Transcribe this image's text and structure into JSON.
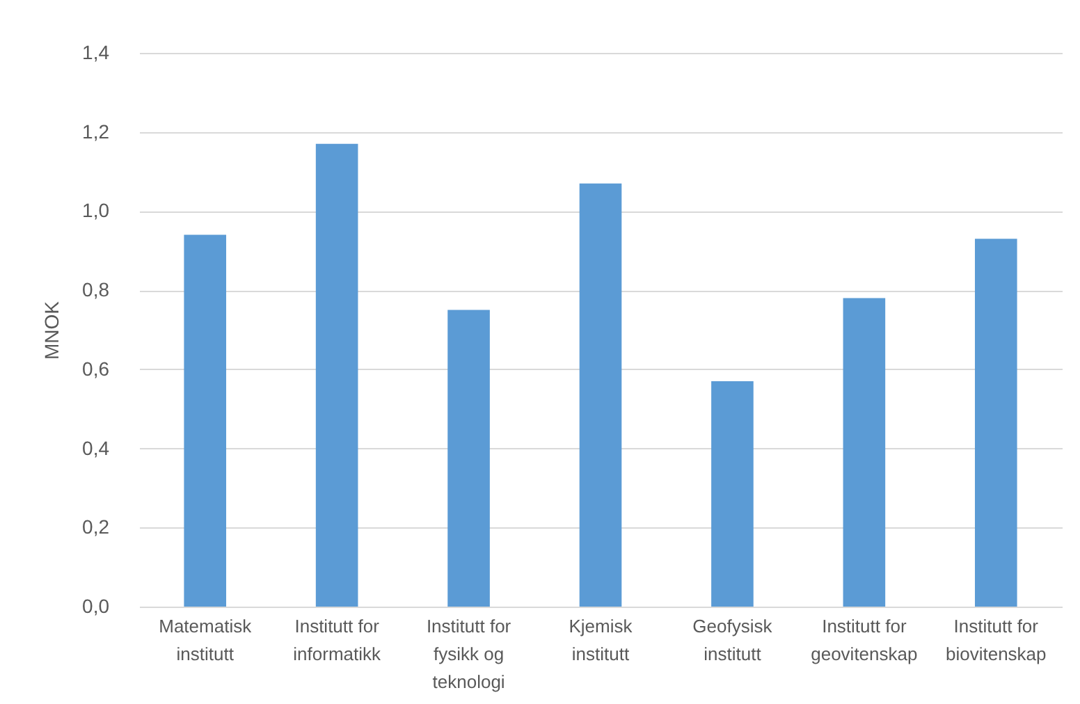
{
  "chart_data": {
    "type": "bar",
    "ylabel": "MNOK",
    "categories": [
      "Matematisk institutt",
      "Institutt for informatikk",
      "Institutt for fysikk og teknologi",
      "Kjemisk institutt",
      "Geofysisk institutt",
      "Institutt for geovitenskap",
      "Institutt for biovitenskap"
    ],
    "values": [
      0.94,
      1.17,
      0.75,
      1.07,
      0.57,
      0.78,
      0.93
    ],
    "color": "#5b9bd5",
    "ylim": [
      0,
      1.4
    ],
    "yticks": [
      {
        "value": 0,
        "label": "0,0"
      },
      {
        "value": 0.2,
        "label": "0,2"
      },
      {
        "value": 0.4,
        "label": "0,4"
      },
      {
        "value": 0.6,
        "label": "0,6"
      },
      {
        "value": 0.8,
        "label": "0,8"
      },
      {
        "value": 1.0,
        "label": "1,0"
      },
      {
        "value": 1.2,
        "label": "1,2"
      },
      {
        "value": 1.4,
        "label": "1,4"
      }
    ],
    "grid": "y"
  }
}
